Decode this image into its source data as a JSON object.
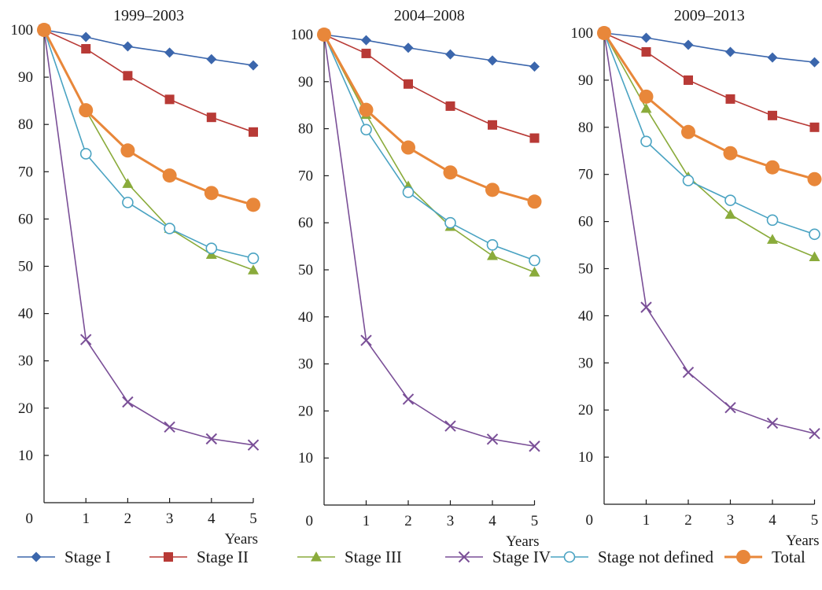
{
  "chart_data": {
    "type": "line",
    "legend_position": "bottom",
    "grid": false,
    "x": [
      0,
      1,
      2,
      3,
      4,
      5
    ],
    "xlabel": "Years",
    "ylim": [
      0,
      100
    ],
    "yticks": [
      10,
      20,
      30,
      40,
      50,
      60,
      70,
      80,
      90,
      100
    ],
    "series_styles": [
      {
        "name": "Stage I",
        "color": "#3b66ac",
        "marker": "diamond"
      },
      {
        "name": "Stage II",
        "color": "#b83a36",
        "marker": "square"
      },
      {
        "name": "Stage III",
        "color": "#8aab3b",
        "marker": "triangle"
      },
      {
        "name": "Stage IV",
        "color": "#7a4f97",
        "marker": "x"
      },
      {
        "name": "Stage not defined",
        "color": "#4aa3c2",
        "marker": "open-circle"
      },
      {
        "name": "Total",
        "color": "#e8873a",
        "marker": "big-circle"
      }
    ],
    "panels": [
      {
        "title": "1999–2003",
        "series": [
          {
            "name": "Stage I",
            "values": [
              100,
              98.5,
              96.5,
              95.2,
              93.8,
              92.5
            ]
          },
          {
            "name": "Stage II",
            "values": [
              100,
              96.0,
              90.3,
              85.3,
              81.5,
              78.4
            ]
          },
          {
            "name": "Stage III",
            "values": [
              100,
              83.0,
              67.5,
              58.0,
              52.5,
              49.2
            ]
          },
          {
            "name": "Stage IV",
            "values": [
              100,
              34.5,
              21.3,
              16.0,
              13.5,
              12.2
            ]
          },
          {
            "name": "Stage not defined",
            "values": [
              100,
              73.8,
              63.5,
              58.0,
              53.8,
              51.7
            ]
          },
          {
            "name": "Total",
            "values": [
              100,
              83.0,
              74.5,
              69.2,
              65.5,
              63.0
            ]
          }
        ]
      },
      {
        "title": "2004–2008",
        "series": [
          {
            "name": "Stage I",
            "values": [
              100,
              98.8,
              97.2,
              95.8,
              94.5,
              93.2
            ]
          },
          {
            "name": "Stage II",
            "values": [
              100,
              96.0,
              89.5,
              84.8,
              80.8,
              78.0
            ]
          },
          {
            "name": "Stage III",
            "values": [
              100,
              83.0,
              67.8,
              59.2,
              53.0,
              49.5
            ]
          },
          {
            "name": "Stage IV",
            "values": [
              100,
              35.0,
              22.5,
              16.8,
              14.0,
              12.5
            ]
          },
          {
            "name": "Stage not defined",
            "values": [
              100,
              79.8,
              66.5,
              60.0,
              55.3,
              52.0
            ]
          },
          {
            "name": "Total",
            "values": [
              100,
              84.0,
              76.0,
              70.7,
              67.0,
              64.5
            ]
          }
        ]
      },
      {
        "title": "2009–2013",
        "series": [
          {
            "name": "Stage I",
            "values": [
              100,
              99.0,
              97.5,
              96.0,
              94.8,
              93.8
            ]
          },
          {
            "name": "Stage II",
            "values": [
              100,
              96.0,
              90.0,
              86.0,
              82.5,
              80.0
            ]
          },
          {
            "name": "Stage III",
            "values": [
              100,
              84.0,
              69.5,
              61.5,
              56.2,
              52.5
            ]
          },
          {
            "name": "Stage IV",
            "values": [
              100,
              41.8,
              28.0,
              20.5,
              17.2,
              15.0
            ]
          },
          {
            "name": "Stage not defined",
            "values": [
              100,
              77.0,
              68.7,
              64.5,
              60.3,
              57.3
            ]
          },
          {
            "name": "Total",
            "values": [
              100,
              86.5,
              79.0,
              74.5,
              71.5,
              69.0
            ]
          }
        ]
      }
    ]
  }
}
